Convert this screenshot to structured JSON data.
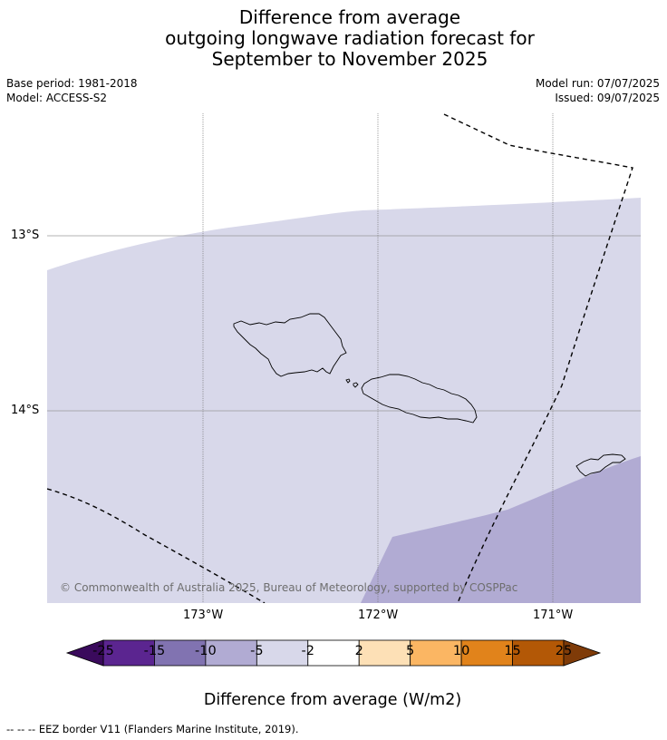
{
  "title": {
    "line1": "Difference from average",
    "line2": "outgoing longwave radiation forecast for",
    "line3": "September to November 2025"
  },
  "meta": {
    "base_period": "Base period: 1981-2018",
    "model": "Model: ACCESS-S2",
    "model_run": "Model run: 07/07/2025",
    "issued": "Issued: 09/07/2025"
  },
  "map": {
    "lat_ticks": [
      "13°S",
      "14°S"
    ],
    "lon_ticks": [
      "173°W",
      "172°W",
      "171°W"
    ],
    "copyright": "© Commonwealth of Australia 2025, Bureau of Meteorology, supported by COSPPac",
    "ocean_color": "#ffffff",
    "anomaly_regions": [
      {
        "name": "-5 to -2",
        "color": "#d8d8ea"
      },
      {
        "name": "-10 to -5",
        "color": "#b1abd3"
      }
    ],
    "eez_line_color": "#000000"
  },
  "colorbar": {
    "title": "Difference from average (W/m2)",
    "tick_labels": [
      "-25",
      "-15",
      "-10",
      "-5",
      "-2",
      "2",
      "5",
      "10",
      "15",
      "25"
    ],
    "colors": [
      "#5b2590",
      "#8173b1",
      "#b1abd3",
      "#d8d8ea",
      "#ffffff",
      "#fde0b6",
      "#fbb663",
      "#e1831b",
      "#b35806"
    ],
    "under_color": "#3a0a5c",
    "over_color": "#7f3b08"
  },
  "footer": {
    "eez_note": "--  --  -- EEZ border V11 (Flanders Marine Institute, 2019)."
  }
}
